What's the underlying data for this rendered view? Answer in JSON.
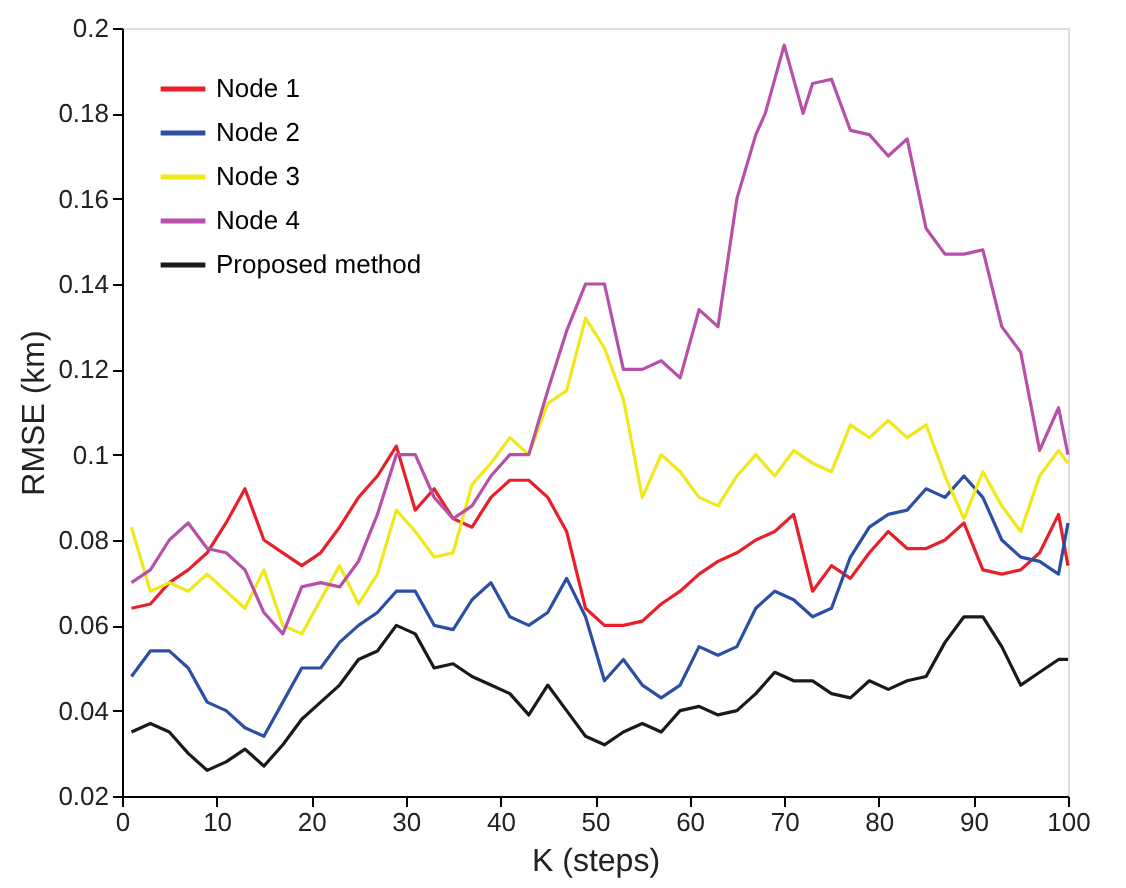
{
  "chart_data": {
    "type": "line",
    "xlabel": "K (steps)",
    "ylabel": "RMSE (km)",
    "x": [
      1,
      3,
      5,
      7,
      9,
      11,
      13,
      15,
      17,
      19,
      21,
      23,
      25,
      27,
      29,
      31,
      33,
      35,
      37,
      39,
      41,
      43,
      45,
      47,
      49,
      51,
      53,
      55,
      57,
      59,
      61,
      63,
      65,
      67,
      69,
      71,
      73,
      75,
      77,
      79,
      81,
      83,
      85,
      87,
      89,
      91,
      93,
      95,
      97,
      99,
      100
    ],
    "xlim": [
      0,
      100
    ],
    "xticks": [
      0,
      10,
      20,
      30,
      40,
      50,
      60,
      70,
      80,
      90,
      100
    ],
    "ylim": [
      0.02,
      0.2
    ],
    "yticks": [
      0.02,
      0.04,
      0.06,
      0.08,
      0.1,
      0.12,
      0.14,
      0.16,
      0.18,
      0.2
    ],
    "grid": false,
    "legend": "top left",
    "marker": "none",
    "line_style": "solid",
    "series": [
      {
        "name": "Node 1",
        "color": "#e8202a",
        "values": [
          0.064,
          0.065,
          0.07,
          0.073,
          0.077,
          0.084,
          0.092,
          0.08,
          0.077,
          0.074,
          0.077,
          0.083,
          0.09,
          0.095,
          0.102,
          0.087,
          0.092,
          0.085,
          0.083,
          0.09,
          0.094,
          0.094,
          0.09,
          0.082,
          0.064,
          0.06,
          0.06,
          0.061,
          0.065,
          0.068,
          0.072,
          0.075,
          0.077,
          0.08,
          0.082,
          0.086,
          0.068,
          0.074,
          0.071,
          0.077,
          0.082,
          0.078,
          0.078,
          0.08,
          0.084,
          0.073,
          0.072,
          0.073,
          0.077,
          0.086,
          0.074
        ]
      },
      {
        "name": "Node 2",
        "color": "#2b4fa3",
        "values": [
          0.048,
          0.054,
          0.054,
          0.05,
          0.042,
          0.04,
          0.036,
          0.034,
          0.042,
          0.05,
          0.05,
          0.056,
          0.06,
          0.063,
          0.068,
          0.068,
          0.06,
          0.059,
          0.066,
          0.07,
          0.062,
          0.06,
          0.063,
          0.071,
          0.062,
          0.047,
          0.052,
          0.046,
          0.043,
          0.046,
          0.055,
          0.053,
          0.055,
          0.064,
          0.068,
          0.066,
          0.062,
          0.064,
          0.076,
          0.083,
          0.086,
          0.087,
          0.092,
          0.09,
          0.095,
          0.09,
          0.08,
          0.076,
          0.075,
          0.072,
          0.084
        ]
      },
      {
        "name": "Node 3",
        "color": "#f0e81a",
        "values": [
          0.083,
          0.068,
          0.07,
          0.068,
          0.072,
          0.068,
          0.064,
          0.073,
          0.06,
          0.058,
          0.066,
          0.074,
          0.065,
          0.072,
          0.087,
          0.082,
          0.076,
          0.077,
          0.093,
          0.098,
          0.104,
          0.1,
          0.112,
          0.115,
          0.132,
          0.125,
          0.113,
          0.09,
          0.1,
          0.096,
          0.09,
          0.088,
          0.095,
          0.1,
          0.095,
          0.101,
          0.098,
          0.096,
          0.107,
          0.104,
          0.108,
          0.104,
          0.107,
          0.095,
          0.085,
          0.096,
          0.088,
          0.082,
          0.095,
          0.101,
          0.098
        ]
      },
      {
        "name": "Node 4",
        "color": "#b84fa8",
        "x": [
          1,
          3,
          5,
          7,
          9,
          11,
          13,
          15,
          17,
          19,
          21,
          23,
          25,
          27,
          29,
          31,
          33,
          35,
          37,
          39,
          41,
          43,
          45,
          47,
          49,
          51,
          53,
          55,
          57,
          59,
          61,
          63,
          65,
          67,
          68,
          70,
          72,
          73,
          75,
          77,
          79,
          81,
          83,
          85,
          87,
          89,
          91,
          93,
          95,
          97,
          99,
          100
        ],
        "values": [
          0.07,
          0.073,
          0.08,
          0.084,
          0.078,
          0.077,
          0.073,
          0.063,
          0.058,
          0.069,
          0.07,
          0.069,
          0.075,
          0.086,
          0.1,
          0.1,
          0.09,
          0.085,
          0.088,
          0.095,
          0.1,
          0.1,
          0.115,
          0.129,
          0.14,
          0.14,
          0.12,
          0.12,
          0.122,
          0.118,
          0.134,
          0.13,
          0.16,
          0.175,
          0.18,
          0.196,
          0.18,
          0.187,
          0.188,
          0.176,
          0.175,
          0.17,
          0.174,
          0.153,
          0.147,
          0.147,
          0.148,
          0.13,
          0.124,
          0.101,
          0.111,
          0.1
        ]
      },
      {
        "name": "Proposed method",
        "color": "#1a1a1a",
        "values": [
          0.035,
          0.037,
          0.035,
          0.03,
          0.026,
          0.028,
          0.031,
          0.027,
          0.032,
          0.038,
          0.042,
          0.046,
          0.052,
          0.054,
          0.06,
          0.058,
          0.05,
          0.051,
          0.048,
          0.046,
          0.044,
          0.039,
          0.046,
          0.04,
          0.034,
          0.032,
          0.035,
          0.037,
          0.035,
          0.04,
          0.041,
          0.039,
          0.04,
          0.044,
          0.049,
          0.047,
          0.047,
          0.044,
          0.043,
          0.047,
          0.045,
          0.047,
          0.048,
          0.056,
          0.062,
          0.062,
          0.055,
          0.046,
          0.049,
          0.052,
          0.052
        ]
      }
    ]
  }
}
